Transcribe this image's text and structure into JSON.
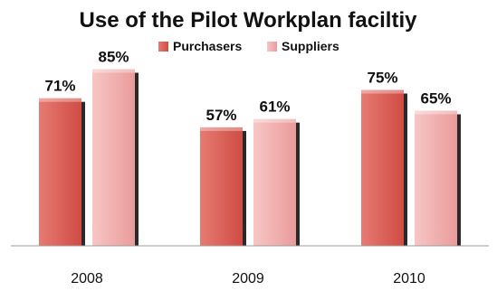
{
  "chart_data": {
    "type": "bar",
    "title": "Use of the Pilot Workplan faciltiy",
    "categories": [
      "2008",
      "2009",
      "2010"
    ],
    "series": [
      {
        "name": "Purchasers",
        "values": [
          71,
          57,
          75
        ],
        "labels": [
          "71%",
          "57%",
          "75%"
        ],
        "color": "#d9534a"
      },
      {
        "name": "Suppliers",
        "values": [
          85,
          61,
          65
        ],
        "labels": [
          "85%",
          "61%",
          "65%"
        ],
        "color": "#f1a9a8"
      }
    ],
    "ylim": [
      0,
      100
    ],
    "legend_position": "top-center",
    "grid": false
  }
}
